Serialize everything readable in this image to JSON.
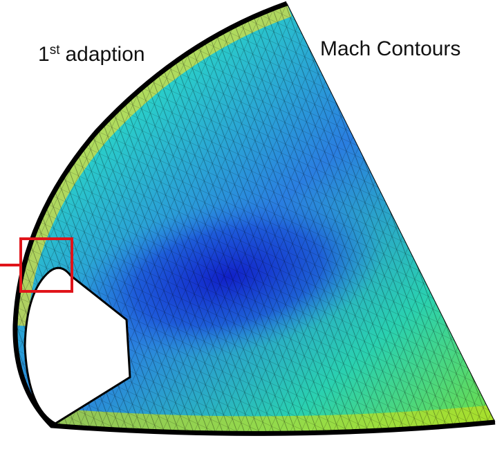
{
  "labels": {
    "adaption_number": "1",
    "adaption_suffix": "st",
    "adaption_word": "adaption",
    "mach": "Mach Contours"
  }
}
